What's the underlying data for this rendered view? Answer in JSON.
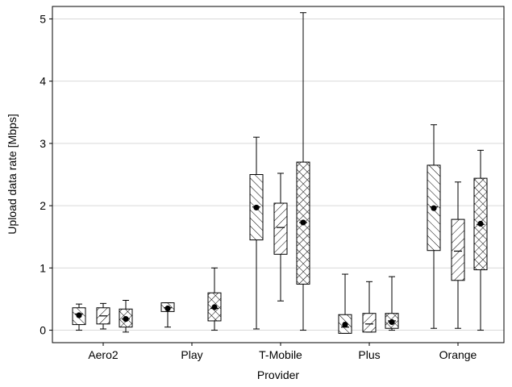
{
  "chart_data": {
    "type": "box",
    "xlabel": "Provider",
    "ylabel": "Upload data rate [Mbps]",
    "ylim": [
      -0.2,
      5.2
    ],
    "yticks": [
      0,
      1,
      2,
      3,
      4,
      5
    ],
    "grid": "horizontal",
    "categories": [
      "Aero2",
      "Play",
      "T-Mobile",
      "Plus",
      "Orange"
    ],
    "series_patterns": [
      "backslash-hatch",
      "slash-hatch",
      "cross-hatch"
    ],
    "boxes": [
      {
        "category": "Aero2",
        "series": 0,
        "whisker_low": 0.0,
        "q1": 0.09,
        "median": 0.26,
        "q3": 0.36,
        "whisker_high": 0.42,
        "mean": 0.24
      },
      {
        "category": "Aero2",
        "series": 1,
        "whisker_low": 0.02,
        "q1": 0.1,
        "median": 0.23,
        "q3": 0.36,
        "whisker_high": 0.43,
        "mean": null
      },
      {
        "category": "Aero2",
        "series": 2,
        "whisker_low": -0.03,
        "q1": 0.05,
        "median": 0.18,
        "q3": 0.34,
        "whisker_high": 0.48,
        "mean": 0.18
      },
      {
        "category": "Play",
        "series": 0,
        "whisker_low": 0.05,
        "q1": 0.3,
        "median": 0.36,
        "q3": 0.44,
        "whisker_high": 0.44,
        "mean": 0.35
      },
      {
        "category": "Play",
        "series": 2,
        "whisker_low": 0.0,
        "q1": 0.15,
        "median": 0.35,
        "q3": 0.6,
        "whisker_high": 1.0,
        "mean": 0.37
      },
      {
        "category": "T-Mobile",
        "series": 0,
        "whisker_low": 0.02,
        "q1": 1.45,
        "median": 1.98,
        "q3": 2.5,
        "whisker_high": 3.1,
        "mean": 1.97
      },
      {
        "category": "T-Mobile",
        "series": 1,
        "whisker_low": 0.47,
        "q1": 1.22,
        "median": 1.65,
        "q3": 2.04,
        "whisker_high": 2.52,
        "mean": null
      },
      {
        "category": "T-Mobile",
        "series": 2,
        "whisker_low": 0.0,
        "q1": 0.74,
        "median": 1.73,
        "q3": 2.7,
        "whisker_high": 5.1,
        "mean": 1.73
      },
      {
        "category": "Plus",
        "series": 0,
        "whisker_low": -0.05,
        "q1": -0.05,
        "median": 0.05,
        "q3": 0.25,
        "whisker_high": 0.9,
        "mean": 0.09
      },
      {
        "category": "Plus",
        "series": 1,
        "whisker_low": -0.03,
        "q1": -0.03,
        "median": 0.1,
        "q3": 0.27,
        "whisker_high": 0.78,
        "mean": null
      },
      {
        "category": "Plus",
        "series": 2,
        "whisker_low": 0.0,
        "q1": 0.03,
        "median": 0.15,
        "q3": 0.27,
        "whisker_high": 0.86,
        "mean": 0.13
      },
      {
        "category": "Orange",
        "series": 0,
        "whisker_low": 0.03,
        "q1": 1.28,
        "median": 1.98,
        "q3": 2.65,
        "whisker_high": 3.3,
        "mean": 1.96
      },
      {
        "category": "Orange",
        "series": 1,
        "whisker_low": 0.03,
        "q1": 0.8,
        "median": 1.27,
        "q3": 1.78,
        "whisker_high": 2.38,
        "mean": null
      },
      {
        "category": "Orange",
        "series": 2,
        "whisker_low": 0.0,
        "q1": 0.97,
        "median": 1.7,
        "q3": 2.44,
        "whisker_high": 2.89,
        "mean": 1.71
      }
    ]
  }
}
